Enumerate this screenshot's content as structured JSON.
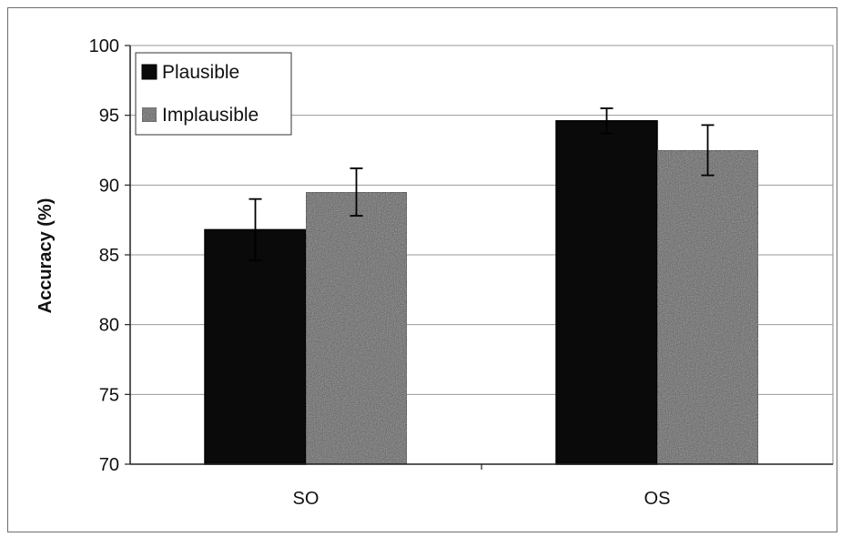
{
  "chart_data": {
    "type": "bar",
    "categories": [
      "SO",
      "OS"
    ],
    "series": [
      {
        "name": "Plausible",
        "values": [
          86.8,
          94.6
        ],
        "errors": [
          2.2,
          0.9
        ],
        "color": "#0a0a0a"
      },
      {
        "name": "Implausible",
        "values": [
          89.5,
          92.5
        ],
        "errors": [
          1.7,
          1.8
        ],
        "color": "#5a5a5a"
      }
    ],
    "title": "",
    "xlabel": "",
    "ylabel": "Accuracy (%)",
    "ylim": [
      70,
      100
    ],
    "yticks": [
      "70",
      "75",
      "80",
      "85",
      "90",
      "95",
      "100"
    ],
    "grid": true,
    "legend_position": "top-left"
  }
}
